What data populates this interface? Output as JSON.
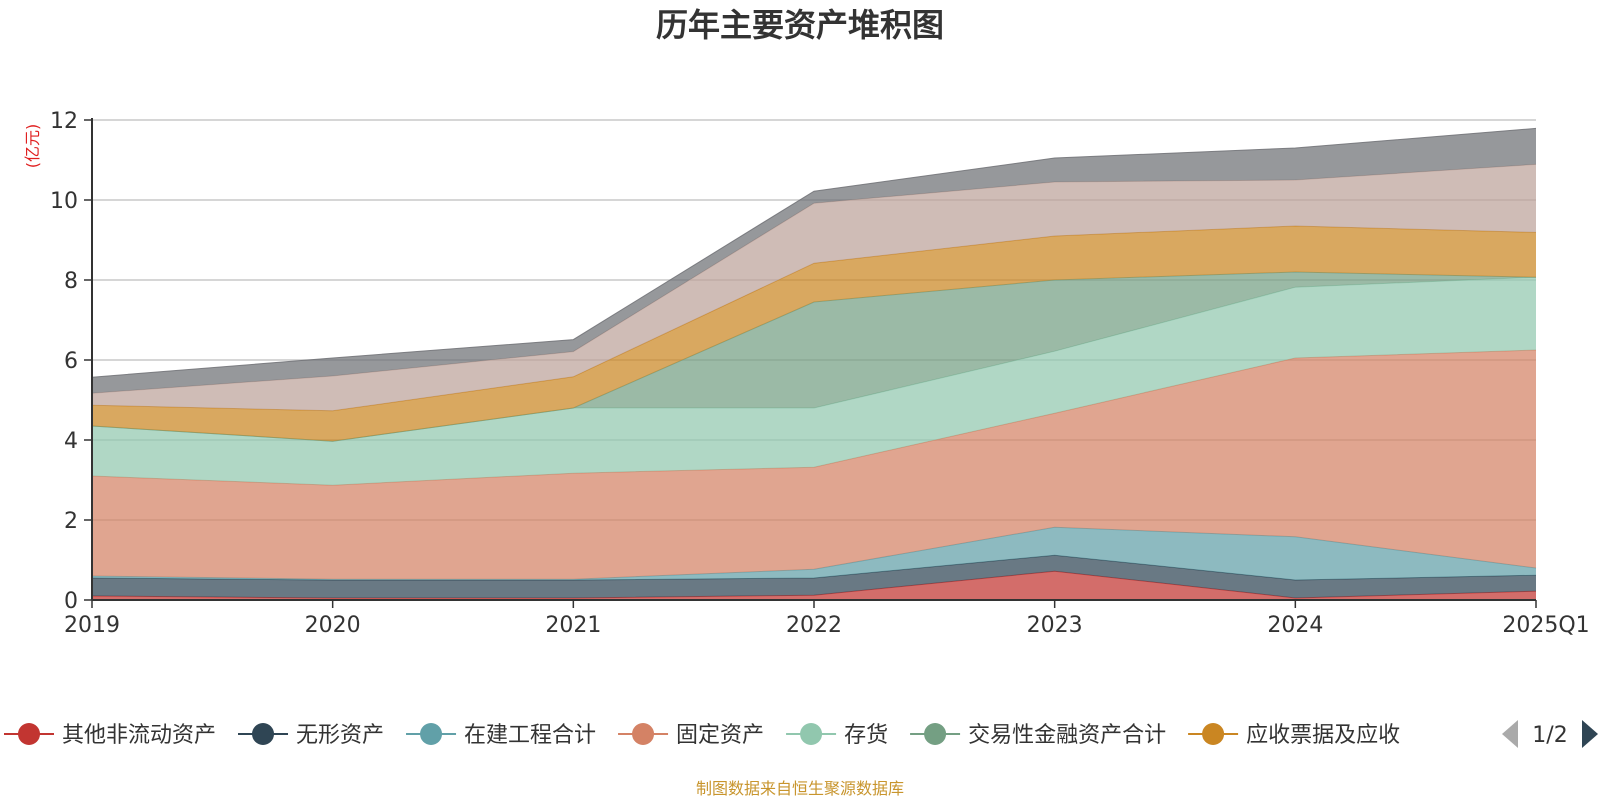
{
  "chart_data": {
    "type": "area",
    "stacked": true,
    "title": "历年主要资产堆积图",
    "ylabel": "(亿元)",
    "ylim": [
      0,
      12
    ],
    "yticks": [
      "0",
      "2",
      "4",
      "6",
      "8",
      "10",
      "12"
    ],
    "categories": [
      "2019",
      "2020",
      "2021",
      "2022",
      "2023",
      "2024",
      "2025Q1"
    ],
    "grid": true,
    "legend_position": "bottom",
    "series": [
      {
        "name": "其他非流动资产",
        "color": "#c23531",
        "values": [
          0.1,
          0.05,
          0.05,
          0.12,
          0.72,
          0.05,
          0.22
        ]
      },
      {
        "name": "无形资产",
        "color": "#2f4554",
        "values": [
          0.45,
          0.45,
          0.45,
          0.43,
          0.4,
          0.45,
          0.4
        ]
      },
      {
        "name": "在建工程合计",
        "color": "#61a0a8",
        "values": [
          0.05,
          0.02,
          0.02,
          0.22,
          0.7,
          1.08,
          0.18
        ]
      },
      {
        "name": "固定资产",
        "color": "#d48265",
        "values": [
          2.5,
          2.35,
          2.65,
          2.55,
          2.85,
          4.47,
          5.45
        ]
      },
      {
        "name": "存货",
        "color": "#91c7ae",
        "values": [
          1.25,
          1.1,
          1.63,
          1.48,
          1.55,
          1.77,
          1.82
        ]
      },
      {
        "name": "交易性金融资产合计",
        "color": "#749f83",
        "values": [
          0,
          0,
          0,
          2.65,
          1.78,
          0.38,
          0
        ]
      },
      {
        "name": "应收票据及应收",
        "color": "#ca8622",
        "values": [
          0.52,
          0.76,
          0.78,
          0.97,
          1.1,
          1.15,
          1.12
        ]
      },
      {
        "color": "#bda29a",
        "values": [
          0.3,
          0.87,
          0.63,
          1.5,
          1.35,
          1.15,
          1.7
        ]
      },
      {
        "color": "#6e7074",
        "values": [
          0.4,
          0.45,
          0.3,
          0.3,
          0.6,
          0.8,
          0.9
        ]
      }
    ],
    "legend_page": "1/2"
  },
  "footer": {
    "source": "制图数据来自恒生聚源数据库"
  }
}
